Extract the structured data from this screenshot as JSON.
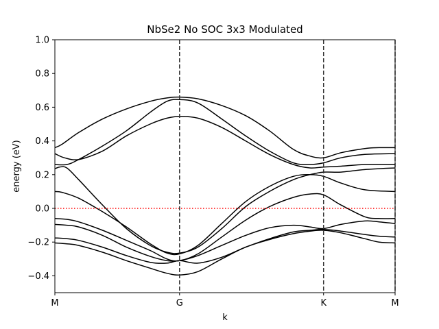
{
  "chart_data": {
    "type": "line",
    "title": "NbSe2 No SOC 3x3 Modulated",
    "xlabel": "k",
    "ylabel": "energy (eV)",
    "xlim": [
      0,
      1.5
    ],
    "ylim": [
      -0.5,
      1.0
    ],
    "x_ticks": [
      {
        "value": 0.0,
        "label": "M"
      },
      {
        "value": 0.523,
        "label": "G"
      },
      {
        "value": 1.127,
        "label": "K"
      },
      {
        "value": 1.427,
        "label": "M"
      }
    ],
    "y_ticks": [
      {
        "value": -0.4,
        "label": "−0.4"
      },
      {
        "value": -0.2,
        "label": "−0.2"
      },
      {
        "value": 0.0,
        "label": "0.0"
      },
      {
        "value": 0.2,
        "label": "0.2"
      },
      {
        "value": 0.4,
        "label": "0.4"
      },
      {
        "value": 0.6,
        "label": "0.6"
      },
      {
        "value": 0.8,
        "label": "0.8"
      },
      {
        "value": 1.0,
        "label": "1.0"
      }
    ],
    "vlines": [
      0.523,
      1.127,
      1.427
    ],
    "fermi_level": 0.0,
    "grid": false,
    "colors": {
      "bands": "#000000",
      "vlines": "#333333",
      "fermi": "#ff0000"
    },
    "series": [
      {
        "x": [
          0,
          0.03,
          0.1,
          0.2,
          0.3,
          0.4,
          0.47,
          0.523,
          0.6,
          0.7,
          0.8,
          0.9,
          1.0,
          1.07,
          1.127,
          1.2,
          1.3,
          1.36,
          1.427
        ],
        "values": [
          0.36,
          0.38,
          0.45,
          0.53,
          0.59,
          0.635,
          0.655,
          0.66,
          0.65,
          0.61,
          0.55,
          0.46,
          0.35,
          0.31,
          0.3,
          0.33,
          0.355,
          0.36,
          0.36
        ]
      },
      {
        "x": [
          0,
          0.05,
          0.1,
          0.2,
          0.3,
          0.4,
          0.47,
          0.523,
          0.6,
          0.7,
          0.8,
          0.9,
          1.0,
          1.07,
          1.127,
          1.2,
          1.3,
          1.427
        ],
        "values": [
          0.26,
          0.26,
          0.29,
          0.37,
          0.46,
          0.57,
          0.635,
          0.645,
          0.625,
          0.53,
          0.43,
          0.34,
          0.27,
          0.26,
          0.27,
          0.3,
          0.32,
          0.325
        ]
      },
      {
        "x": [
          0,
          0.04,
          0.1,
          0.2,
          0.3,
          0.4,
          0.47,
          0.523,
          0.6,
          0.7,
          0.8,
          0.9,
          1.0,
          1.07,
          1.127,
          1.2,
          1.3,
          1.427
        ],
        "values": [
          0.325,
          0.3,
          0.29,
          0.34,
          0.43,
          0.5,
          0.535,
          0.545,
          0.535,
          0.48,
          0.4,
          0.32,
          0.26,
          0.24,
          0.245,
          0.25,
          0.26,
          0.26
        ]
      },
      {
        "x": [
          0,
          0.02,
          0.05,
          0.1,
          0.2,
          0.3,
          0.4,
          0.47,
          0.523,
          0.6,
          0.7,
          0.8,
          0.9,
          1.0,
          1.07,
          1.127,
          1.2,
          1.3,
          1.427
        ],
        "values": [
          0.235,
          0.245,
          0.24,
          0.17,
          0.02,
          -0.12,
          -0.22,
          -0.26,
          -0.265,
          -0.23,
          -0.12,
          0.01,
          0.1,
          0.17,
          0.2,
          0.215,
          0.215,
          0.23,
          0.24
        ]
      },
      {
        "x": [
          0,
          0.03,
          0.1,
          0.2,
          0.3,
          0.4,
          0.47,
          0.523,
          0.6,
          0.7,
          0.8,
          0.9,
          1.0,
          1.07,
          1.127,
          1.2,
          1.3,
          1.427
        ],
        "values": [
          0.1,
          0.095,
          0.06,
          -0.02,
          -0.11,
          -0.21,
          -0.265,
          -0.27,
          -0.22,
          -0.09,
          0.04,
          0.13,
          0.19,
          0.2,
          0.19,
          0.15,
          0.11,
          0.1
        ]
      },
      {
        "x": [
          0,
          0.05,
          0.1,
          0.2,
          0.3,
          0.4,
          0.47,
          0.523,
          0.6,
          0.7,
          0.8,
          0.9,
          1.0,
          1.07,
          1.127,
          1.2,
          1.3,
          1.36,
          1.427
        ],
        "values": [
          -0.06,
          -0.065,
          -0.08,
          -0.13,
          -0.19,
          -0.25,
          -0.3,
          -0.31,
          -0.27,
          -0.17,
          -0.07,
          0.01,
          0.065,
          0.085,
          0.08,
          0.02,
          -0.05,
          -0.06,
          -0.06
        ]
      },
      {
        "x": [
          0,
          0.05,
          0.1,
          0.2,
          0.3,
          0.4,
          0.47,
          0.523,
          0.6,
          0.7,
          0.8,
          0.9,
          1.0,
          1.07,
          1.127,
          1.2,
          1.3,
          1.36,
          1.427
        ],
        "values": [
          -0.095,
          -0.1,
          -0.11,
          -0.16,
          -0.23,
          -0.285,
          -0.31,
          -0.31,
          -0.28,
          -0.22,
          -0.16,
          -0.115,
          -0.1,
          -0.11,
          -0.12,
          -0.095,
          -0.075,
          -0.08,
          -0.09
        ]
      },
      {
        "x": [
          0,
          0.05,
          0.1,
          0.2,
          0.3,
          0.4,
          0.47,
          0.523,
          0.6,
          0.7,
          0.8,
          0.9,
          1.0,
          1.07,
          1.127,
          1.2,
          1.3,
          1.36,
          1.427
        ],
        "values": [
          -0.175,
          -0.18,
          -0.19,
          -0.23,
          -0.28,
          -0.32,
          -0.325,
          -0.31,
          -0.325,
          -0.29,
          -0.23,
          -0.18,
          -0.14,
          -0.13,
          -0.125,
          -0.135,
          -0.155,
          -0.165,
          -0.17
        ]
      },
      {
        "x": [
          0,
          0.05,
          0.1,
          0.2,
          0.3,
          0.4,
          0.47,
          0.523,
          0.6,
          0.7,
          0.8,
          0.9,
          1.0,
          1.07,
          1.127,
          1.2,
          1.3,
          1.36,
          1.427
        ],
        "values": [
          -0.205,
          -0.21,
          -0.22,
          -0.26,
          -0.31,
          -0.355,
          -0.385,
          -0.395,
          -0.375,
          -0.3,
          -0.23,
          -0.185,
          -0.15,
          -0.135,
          -0.13,
          -0.145,
          -0.18,
          -0.2,
          -0.205
        ]
      }
    ]
  }
}
